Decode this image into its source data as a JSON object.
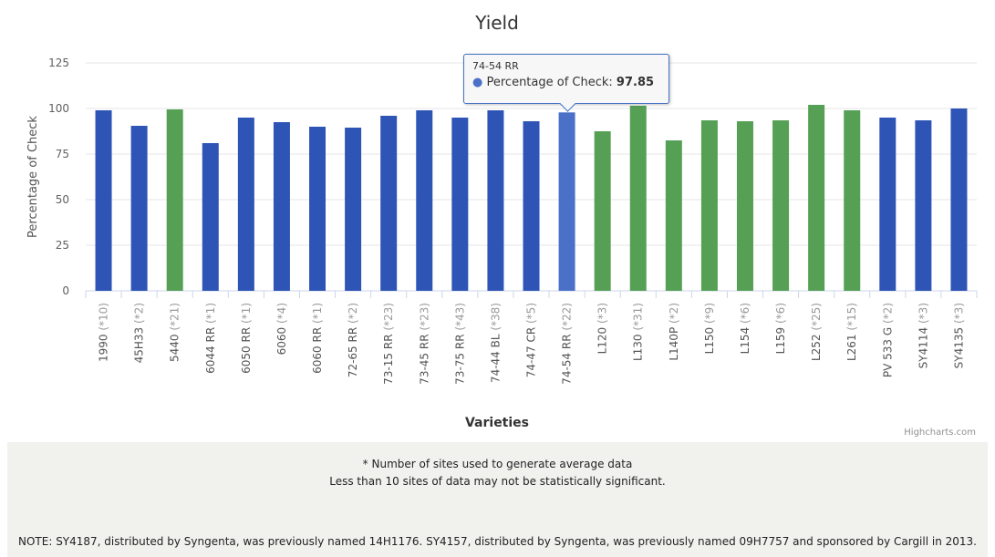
{
  "chart_data": {
    "type": "bar",
    "title": "Yield",
    "xlabel": "Varieties",
    "ylabel": "Percentage of Check",
    "ylim": [
      0,
      125
    ],
    "yticks": [
      0,
      25,
      50,
      75,
      100,
      125
    ],
    "categories": [
      "1990 (*10)",
      "45H33 (*2)",
      "5440 (*21)",
      "6044 RR (*1)",
      "6050 RR (*1)",
      "6060 (*4)",
      "6060 RR (*1)",
      "72-65 RR (*2)",
      "73-15 RR (*23)",
      "73-45 RR (*23)",
      "73-75 RR (*43)",
      "74-44 BL (*38)",
      "74-47 CR (*5)",
      "74-54 RR (*22)",
      "L120 (*3)",
      "L130 (*31)",
      "L140P (*2)",
      "L150 (*9)",
      "L154 (*6)",
      "L159 (*6)",
      "L252 (*25)",
      "L261 (*15)",
      "PV 533 G (*2)",
      "SY4114 (*3)",
      "SY4135 (*3)"
    ],
    "values": [
      99,
      90.5,
      99.5,
      81,
      95,
      92.5,
      90,
      89.5,
      96,
      99,
      95,
      99,
      93,
      97.85,
      87.5,
      101.5,
      82.5,
      93.5,
      93,
      93.5,
      102,
      99,
      95,
      93.5,
      100
    ],
    "colors": [
      "#2e55b5",
      "#2e55b5",
      "#55a055",
      "#2e55b5",
      "#2e55b5",
      "#2e55b5",
      "#2e55b5",
      "#2e55b5",
      "#2e55b5",
      "#2e55b5",
      "#2e55b5",
      "#2e55b5",
      "#2e55b5",
      "#4a70c8",
      "#55a055",
      "#55a055",
      "#55a055",
      "#55a055",
      "#55a055",
      "#55a055",
      "#55a055",
      "#55a055",
      "#2e55b5",
      "#2e55b5",
      "#2e55b5"
    ],
    "grid": true,
    "legend": "none",
    "highlighted_index": 13
  },
  "tooltip": {
    "header": "74-54 RR",
    "series_label": "Percentage of Check",
    "value": "97.85"
  },
  "credits": "Highcharts.com",
  "footer": {
    "line1": "* Number of sites used to generate average data",
    "line2": "Less than 10 sites of data may not be statistically significant.",
    "note": "NOTE: SY4187, distributed by Syngenta, was previously named 14H1176. SY4157, distributed by Syngenta, was previously named 09H7757 and sponsored by Cargill in 2013."
  }
}
